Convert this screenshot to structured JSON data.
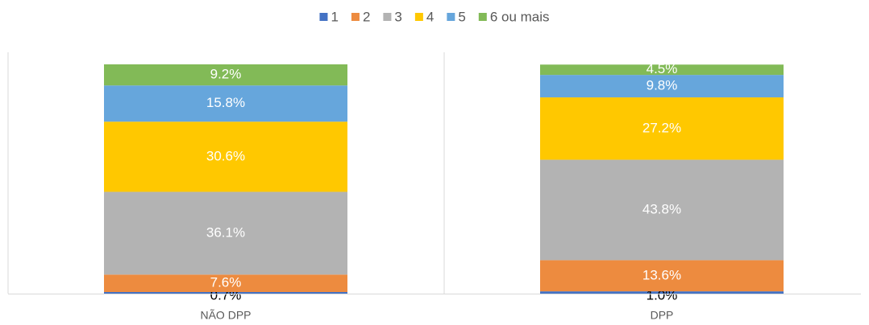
{
  "chart_data": {
    "type": "stacked_bar",
    "categories": [
      "NÃO DPP",
      "DPP"
    ],
    "ylim": [
      0,
      100
    ],
    "series": [
      {
        "name": "1",
        "color": "#4472c4",
        "label_color": "#000000",
        "values": [
          0.7,
          1.0
        ],
        "value_labels": [
          "0.7%",
          "1.0%"
        ]
      },
      {
        "name": "2",
        "color": "#ed8b3f",
        "label_color": "#ffffff",
        "values": [
          7.6,
          13.6
        ],
        "value_labels": [
          "7.6%",
          "13.6%"
        ]
      },
      {
        "name": "3",
        "color": "#b3b3b3",
        "label_color": "#ffffff",
        "values": [
          36.1,
          43.8
        ],
        "value_labels": [
          "36.1%",
          "43.8%"
        ]
      },
      {
        "name": "4",
        "color": "#ffc800",
        "label_color": "#ffffff",
        "values": [
          30.6,
          27.2
        ],
        "value_labels": [
          "30.6%",
          "27.2%"
        ]
      },
      {
        "name": "5",
        "color": "#66a6dc",
        "label_color": "#ffffff",
        "values": [
          15.8,
          9.8
        ],
        "value_labels": [
          "15.8%",
          "9.8%"
        ]
      },
      {
        "name": "6 ou mais",
        "color": "#82ba57",
        "label_color": "#ffffff",
        "values": [
          9.2,
          4.5
        ],
        "value_labels": [
          "9.2%",
          "4.5%"
        ]
      }
    ]
  }
}
